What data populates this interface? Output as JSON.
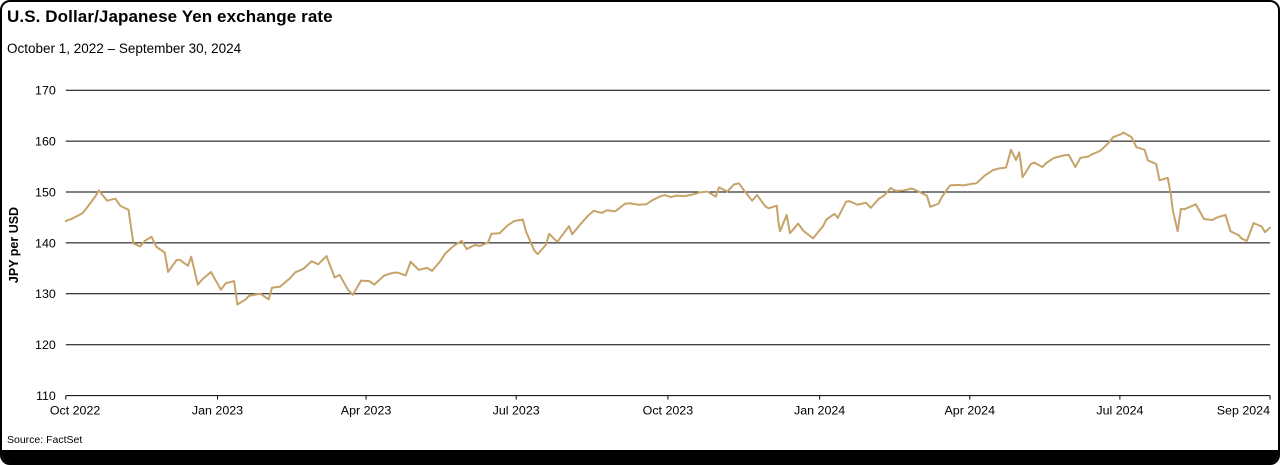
{
  "chart_data": {
    "type": "line",
    "title": "U.S. Dollar/Japanese Yen exchange rate",
    "subtitle": "October 1, 2022 – September 30, 2024",
    "ylabel": "JPY per USD",
    "source": "Source: FactSet",
    "line_color": "#C5A369",
    "grid": true,
    "legend": false,
    "ylim": [
      110,
      170
    ],
    "yticks": [
      110,
      120,
      130,
      140,
      150,
      160,
      170
    ],
    "x_range": [
      "2022-10-01",
      "2024-09-30"
    ],
    "xticks": [
      {
        "label": "Oct 2022",
        "date": "2022-10-01"
      },
      {
        "label": "Jan 2023",
        "date": "2023-01-01"
      },
      {
        "label": "Apr 2023",
        "date": "2023-04-01"
      },
      {
        "label": "Jul 2023",
        "date": "2023-07-01"
      },
      {
        "label": "Oct 2023",
        "date": "2023-10-01"
      },
      {
        "label": "Jan 2024",
        "date": "2024-01-01"
      },
      {
        "label": "Apr 2024",
        "date": "2024-04-01"
      },
      {
        "label": "Jul 2024",
        "date": "2024-07-01"
      },
      {
        "label": "Sep 2024",
        "date": "2024-09-30"
      }
    ],
    "points": [
      [
        "2022-10-01",
        144.3
      ],
      [
        "2022-10-05",
        144.8
      ],
      [
        "2022-10-11",
        145.8
      ],
      [
        "2022-10-14",
        147.0
      ],
      [
        "2022-10-19",
        149.2
      ],
      [
        "2022-10-21",
        150.3
      ],
      [
        "2022-10-26",
        148.3
      ],
      [
        "2022-10-31",
        148.7
      ],
      [
        "2022-11-03",
        147.3
      ],
      [
        "2022-11-08",
        146.5
      ],
      [
        "2022-11-11",
        139.9
      ],
      [
        "2022-11-15",
        139.3
      ],
      [
        "2022-11-18",
        140.4
      ],
      [
        "2022-11-22",
        141.2
      ],
      [
        "2022-11-25",
        139.2
      ],
      [
        "2022-11-30",
        138.1
      ],
      [
        "2022-12-02",
        134.3
      ],
      [
        "2022-12-07",
        136.6
      ],
      [
        "2022-12-09",
        136.7
      ],
      [
        "2022-12-14",
        135.5
      ],
      [
        "2022-12-16",
        137.3
      ],
      [
        "2022-12-20",
        131.8
      ],
      [
        "2022-12-23",
        132.9
      ],
      [
        "2022-12-28",
        134.3
      ],
      [
        "2023-01-03",
        130.8
      ],
      [
        "2023-01-06",
        132.1
      ],
      [
        "2023-01-11",
        132.5
      ],
      [
        "2023-01-13",
        127.9
      ],
      [
        "2023-01-18",
        128.9
      ],
      [
        "2023-01-20",
        129.6
      ],
      [
        "2023-01-25",
        129.9
      ],
      [
        "2023-01-27",
        130.0
      ],
      [
        "2023-02-01",
        128.9
      ],
      [
        "2023-02-03",
        131.2
      ],
      [
        "2023-02-08",
        131.4
      ],
      [
        "2023-02-14",
        133.1
      ],
      [
        "2023-02-17",
        134.2
      ],
      [
        "2023-02-22",
        134.9
      ],
      [
        "2023-02-27",
        136.4
      ],
      [
        "2023-03-03",
        135.8
      ],
      [
        "2023-03-08",
        137.4
      ],
      [
        "2023-03-13",
        133.2
      ],
      [
        "2023-03-16",
        133.7
      ],
      [
        "2023-03-21",
        130.8
      ],
      [
        "2023-03-24",
        129.8
      ],
      [
        "2023-03-29",
        132.6
      ],
      [
        "2023-04-03",
        132.5
      ],
      [
        "2023-04-06",
        131.8
      ],
      [
        "2023-04-12",
        133.6
      ],
      [
        "2023-04-17",
        134.1
      ],
      [
        "2023-04-20",
        134.2
      ],
      [
        "2023-04-25",
        133.6
      ],
      [
        "2023-04-28",
        136.3
      ],
      [
        "2023-05-03",
        134.7
      ],
      [
        "2023-05-08",
        135.1
      ],
      [
        "2023-05-11",
        134.5
      ],
      [
        "2023-05-16",
        136.4
      ],
      [
        "2023-05-19",
        137.9
      ],
      [
        "2023-05-24",
        139.4
      ],
      [
        "2023-05-29",
        140.4
      ],
      [
        "2023-06-01",
        138.8
      ],
      [
        "2023-06-06",
        139.6
      ],
      [
        "2023-06-09",
        139.4
      ],
      [
        "2023-06-14",
        140.1
      ],
      [
        "2023-06-16",
        141.8
      ],
      [
        "2023-06-21",
        141.9
      ],
      [
        "2023-06-26",
        143.5
      ],
      [
        "2023-06-30",
        144.3
      ],
      [
        "2023-07-05",
        144.6
      ],
      [
        "2023-07-07",
        142.2
      ],
      [
        "2023-07-12",
        138.5
      ],
      [
        "2023-07-14",
        137.8
      ],
      [
        "2023-07-19",
        139.6
      ],
      [
        "2023-07-21",
        141.8
      ],
      [
        "2023-07-26",
        140.2
      ],
      [
        "2023-07-28",
        141.1
      ],
      [
        "2023-08-02",
        143.3
      ],
      [
        "2023-08-04",
        141.7
      ],
      [
        "2023-08-09",
        143.7
      ],
      [
        "2023-08-14",
        145.5
      ],
      [
        "2023-08-17",
        146.3
      ],
      [
        "2023-08-22",
        145.9
      ],
      [
        "2023-08-25",
        146.4
      ],
      [
        "2023-08-30",
        146.2
      ],
      [
        "2023-09-05",
        147.7
      ],
      [
        "2023-09-08",
        147.8
      ],
      [
        "2023-09-13",
        147.5
      ],
      [
        "2023-09-18",
        147.6
      ],
      [
        "2023-09-21",
        148.3
      ],
      [
        "2023-09-26",
        149.1
      ],
      [
        "2023-09-29",
        149.4
      ],
      [
        "2023-10-03",
        149.0
      ],
      [
        "2023-10-06",
        149.3
      ],
      [
        "2023-10-11",
        149.2
      ],
      [
        "2023-10-16",
        149.5
      ],
      [
        "2023-10-20",
        149.9
      ],
      [
        "2023-10-25",
        150.1
      ],
      [
        "2023-10-30",
        149.1
      ],
      [
        "2023-11-01",
        150.9
      ],
      [
        "2023-11-06",
        150.1
      ],
      [
        "2023-11-10",
        151.5
      ],
      [
        "2023-11-13",
        151.7
      ],
      [
        "2023-11-16",
        150.4
      ],
      [
        "2023-11-21",
        148.3
      ],
      [
        "2023-11-24",
        149.4
      ],
      [
        "2023-11-29",
        147.2
      ],
      [
        "2023-12-01",
        146.8
      ],
      [
        "2023-12-06",
        147.3
      ],
      [
        "2023-12-07",
        144.0
      ],
      [
        "2023-12-08",
        142.3
      ],
      [
        "2023-12-12",
        145.5
      ],
      [
        "2023-12-14",
        141.9
      ],
      [
        "2023-12-19",
        143.8
      ],
      [
        "2023-12-22",
        142.4
      ],
      [
        "2023-12-28",
        140.9
      ],
      [
        "2024-01-03",
        143.3
      ],
      [
        "2024-01-05",
        144.6
      ],
      [
        "2024-01-10",
        145.7
      ],
      [
        "2024-01-12",
        144.9
      ],
      [
        "2024-01-17",
        148.1
      ],
      [
        "2024-01-19",
        148.2
      ],
      [
        "2024-01-24",
        147.5
      ],
      [
        "2024-01-29",
        147.9
      ],
      [
        "2024-02-01",
        146.9
      ],
      [
        "2024-02-06",
        148.7
      ],
      [
        "2024-02-09",
        149.3
      ],
      [
        "2024-02-13",
        150.8
      ],
      [
        "2024-02-16",
        150.2
      ],
      [
        "2024-02-21",
        150.3
      ],
      [
        "2024-02-26",
        150.7
      ],
      [
        "2024-03-01",
        150.1
      ],
      [
        "2024-03-06",
        149.3
      ],
      [
        "2024-03-08",
        147.1
      ],
      [
        "2024-03-13",
        147.7
      ],
      [
        "2024-03-15",
        149.0
      ],
      [
        "2024-03-20",
        151.3
      ],
      [
        "2024-03-25",
        151.4
      ],
      [
        "2024-03-28",
        151.3
      ],
      [
        "2024-04-02",
        151.6
      ],
      [
        "2024-04-05",
        151.7
      ],
      [
        "2024-04-10",
        153.2
      ],
      [
        "2024-04-15",
        154.3
      ],
      [
        "2024-04-18",
        154.6
      ],
      [
        "2024-04-23",
        154.8
      ],
      [
        "2024-04-26",
        158.3
      ],
      [
        "2024-04-29",
        156.3
      ],
      [
        "2024-05-01",
        157.8
      ],
      [
        "2024-05-03",
        152.9
      ],
      [
        "2024-05-08",
        155.5
      ],
      [
        "2024-05-10",
        155.8
      ],
      [
        "2024-05-15",
        154.9
      ],
      [
        "2024-05-17",
        155.6
      ],
      [
        "2024-05-22",
        156.7
      ],
      [
        "2024-05-28",
        157.2
      ],
      [
        "2024-05-31",
        157.3
      ],
      [
        "2024-06-04",
        154.9
      ],
      [
        "2024-06-07",
        156.7
      ],
      [
        "2024-06-12",
        157.0
      ],
      [
        "2024-06-14",
        157.4
      ],
      [
        "2024-06-19",
        158.1
      ],
      [
        "2024-06-24",
        159.6
      ],
      [
        "2024-06-27",
        160.8
      ],
      [
        "2024-07-02",
        161.4
      ],
      [
        "2024-07-03",
        161.7
      ],
      [
        "2024-07-08",
        160.8
      ],
      [
        "2024-07-11",
        158.8
      ],
      [
        "2024-07-16",
        158.3
      ],
      [
        "2024-07-18",
        156.2
      ],
      [
        "2024-07-23",
        155.5
      ],
      [
        "2024-07-25",
        152.3
      ],
      [
        "2024-07-30",
        152.8
      ],
      [
        "2024-08-01",
        149.3
      ],
      [
        "2024-08-02",
        146.5
      ],
      [
        "2024-08-05",
        142.3
      ],
      [
        "2024-08-07",
        146.7
      ],
      [
        "2024-08-09",
        146.6
      ],
      [
        "2024-08-14",
        147.3
      ],
      [
        "2024-08-16",
        147.6
      ],
      [
        "2024-08-21",
        144.7
      ],
      [
        "2024-08-26",
        144.5
      ],
      [
        "2024-08-29",
        145.0
      ],
      [
        "2024-09-03",
        145.5
      ],
      [
        "2024-09-06",
        142.3
      ],
      [
        "2024-09-11",
        141.5
      ],
      [
        "2024-09-13",
        140.8
      ],
      [
        "2024-09-16",
        140.4
      ],
      [
        "2024-09-20",
        143.9
      ],
      [
        "2024-09-25",
        143.2
      ],
      [
        "2024-09-27",
        142.1
      ],
      [
        "2024-09-30",
        143.0
      ]
    ]
  }
}
